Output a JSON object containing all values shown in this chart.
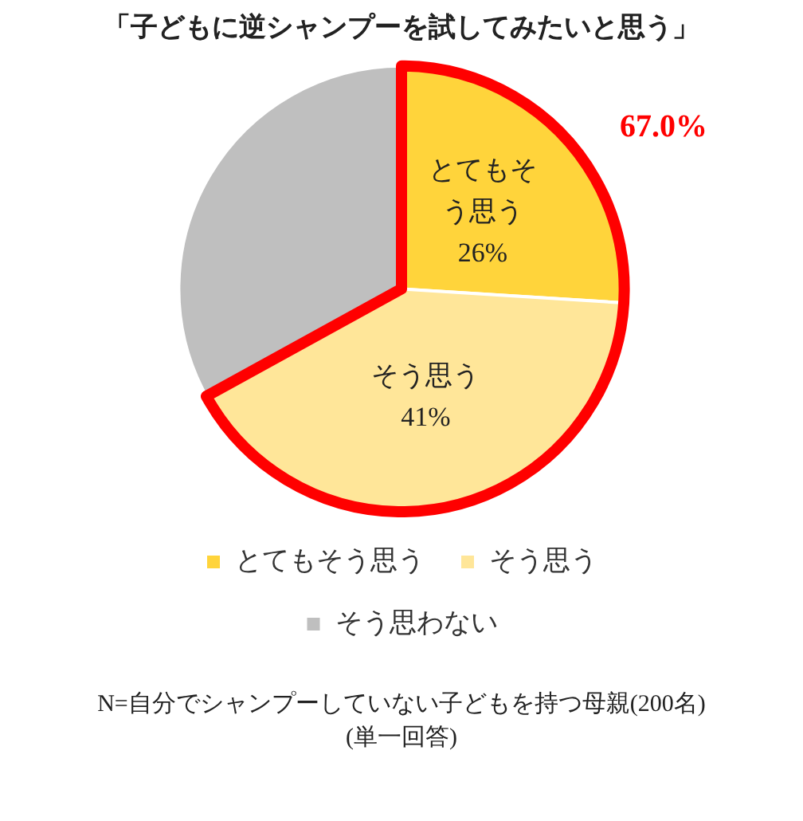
{
  "chart_data": {
    "type": "pie",
    "title": "「子どもに逆シャンプーを試してみたいと思う」",
    "categories": [
      "とてもそう思う",
      "そう思う",
      "そう思わない"
    ],
    "values": [
      26,
      41,
      33
    ],
    "colors": [
      "#ffd43b",
      "#ffe699",
      "#bfbfbf"
    ],
    "value_labels": [
      "26%",
      "41%",
      null
    ],
    "legend": "bottom",
    "annotations": [
      "67.0%",
      "N=自分でシャンプーしていない子どもを持つ母親(200名)",
      "(単一回答)"
    ]
  }
}
